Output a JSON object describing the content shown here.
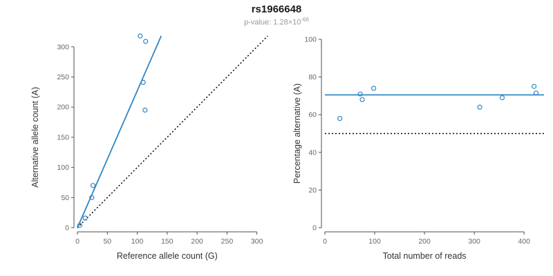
{
  "title": "rs1966648",
  "subtitle": {
    "prefix": "p-value: ",
    "mantissa": "1.28×10",
    "exponent": "-66"
  },
  "style": {
    "accent_blue": "#2E86C4",
    "axis_color": "#4d4d4d",
    "tick_label_color": "#666666",
    "axis_label_color": "#333333",
    "subtitle_color": "#999999",
    "title_color": "#1a1a1a"
  },
  "chart_data": [
    {
      "type": "scatter",
      "xlabel": "Reference allele count (G)",
      "ylabel": "Alternative allele count (A)",
      "xlim": [
        0,
        320
      ],
      "ylim": [
        0,
        325
      ],
      "xticks": [
        0,
        50,
        100,
        150,
        200,
        250,
        300
      ],
      "yticks": [
        0,
        50,
        100,
        150,
        200,
        250,
        300
      ],
      "grid": false,
      "legend": "none",
      "point_color": "#2E86C4",
      "points": [
        [
          4,
          4
        ],
        [
          13,
          16
        ],
        [
          24,
          50
        ],
        [
          26,
          70
        ],
        [
          105,
          318
        ],
        [
          114,
          309
        ],
        [
          110,
          241
        ],
        [
          113,
          195
        ]
      ],
      "lines": [
        {
          "name": "regression-line",
          "style": "solid",
          "color": "#2E86C4",
          "width": 1.8,
          "points": [
            [
              0,
              0
            ],
            [
              140,
              318
            ]
          ]
        },
        {
          "name": "identity-line",
          "style": "dotted",
          "color": "#000000",
          "width": 1.5,
          "points": [
            [
              0,
              0
            ],
            [
              318,
              318
            ]
          ]
        }
      ]
    },
    {
      "type": "scatter",
      "xlabel": "Total number of reads",
      "ylabel": "Percentage alternative (A)",
      "xlim": [
        0,
        440
      ],
      "ylim": [
        0,
        100
      ],
      "xticks": [
        0,
        100,
        200,
        300,
        400
      ],
      "yticks": [
        0,
        20,
        40,
        60,
        80,
        100
      ],
      "grid": false,
      "legend": "none",
      "point_color": "#2E86C4",
      "points": [
        [
          30,
          58
        ],
        [
          71,
          71
        ],
        [
          75,
          68
        ],
        [
          98,
          74
        ],
        [
          311,
          64
        ],
        [
          356,
          69
        ],
        [
          420,
          75
        ],
        [
          424,
          71.5
        ]
      ],
      "lines": [
        {
          "name": "mean-percentage-line",
          "style": "solid",
          "color": "#2E86C4",
          "width": 1.8,
          "points": [
            [
              0,
              70.5
            ],
            [
              440,
              70.5
            ]
          ]
        },
        {
          "name": "fifty-percent-reference-line",
          "style": "dotted",
          "color": "#000000",
          "width": 1.5,
          "points": [
            [
              0,
              50
            ],
            [
              440,
              50
            ]
          ]
        }
      ]
    }
  ]
}
